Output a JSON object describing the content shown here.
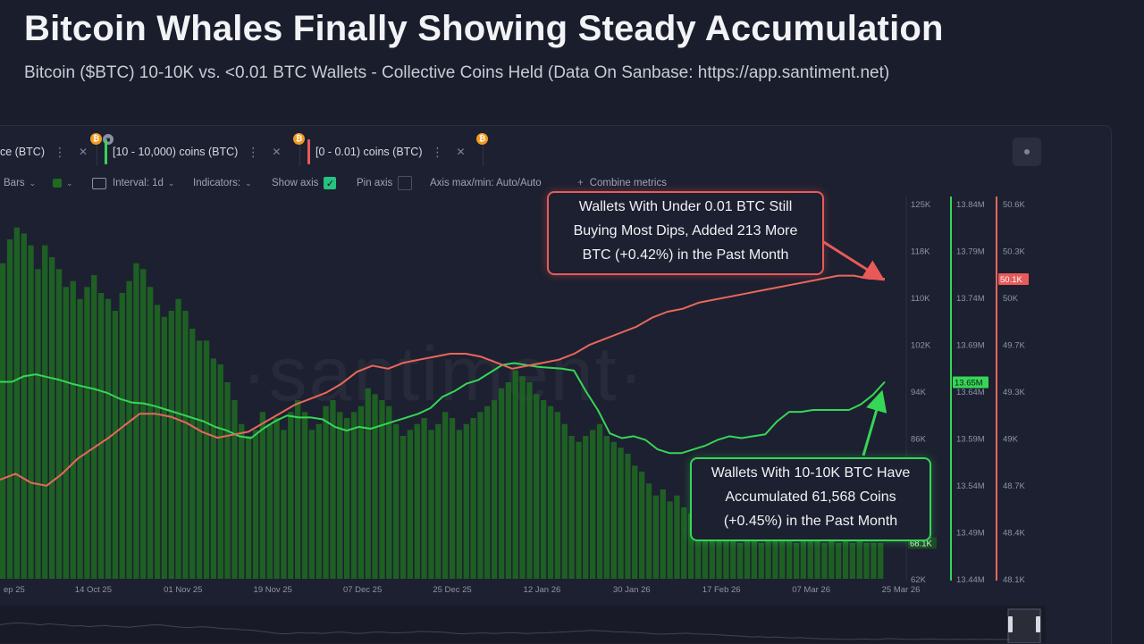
{
  "title": "Bitcoin Whales Finally Showing Steady Accumulation",
  "subtitle": "Bitcoin ($BTC) 10-10K vs. <0.01 BTC Wallets - Collective Coins Held (Data On Sanbase: https://app.santiment.net)",
  "tabs": [
    {
      "label": "ce (BTC)",
      "color": ""
    },
    {
      "label": "[10 - 10,000) coins (BTC)",
      "color": "#36d657"
    },
    {
      "label": "[0 - 0.01) coins (BTC)",
      "color": "#e85a5a"
    }
  ],
  "toolbar": {
    "bars": "Bars",
    "interval": "Interval: 1d",
    "indicators": "Indicators:",
    "show_axis": "Show axis",
    "pin_axis": "Pin axis",
    "axis_maxmin": "Axis max/min: Auto/Auto",
    "combine": "Combine metrics"
  },
  "watermark": "·santiment·",
  "colors": {
    "price_bars": "#1f6b22",
    "green_series": "#36d657",
    "red_series": "#e8685a",
    "background": "#1a1d2b"
  },
  "annotations": {
    "red": [
      "Wallets With Under 0.01 BTC Still",
      "Buying Most Dips, Added 213 More",
      "BTC (+0.42%) in the Past Month"
    ],
    "green": [
      "Wallets With 10-10K BTC Have",
      "Accumulated 61,568 Coins",
      "(+0.45%) in the Past Month"
    ]
  },
  "chart_data": {
    "type": "line",
    "title": "Bitcoin Whales Finally Showing Steady Accumulation",
    "x_ticks": [
      "ep 25",
      "14 Oct 25",
      "01 Nov 25",
      "19 Nov 25",
      "07 Dec 25",
      "25 Dec 25",
      "12 Jan 26",
      "30 Jan 26",
      "17 Feb 26",
      "07 Mar 26",
      "25 Mar 26"
    ],
    "axes": {
      "price": {
        "ticks": [
          "125K",
          "118K",
          "110K",
          "102K",
          "94K",
          "86K",
          "78K",
          "70K",
          "62K"
        ],
        "current_label": "68.1K",
        "current_value": 68100
      },
      "whales": {
        "ticks": [
          "13.84M",
          "13.79M",
          "13.74M",
          "13.69M",
          "13.64M",
          "13.59M",
          "13.54M",
          "13.49M",
          "13.44M"
        ],
        "current_label": "13.65M",
        "current_value": 13650000
      },
      "shrimp": {
        "ticks": [
          "50.6K",
          "50.3K",
          "50K",
          "49.7K",
          "49.3K",
          "49K",
          "48.7K",
          "48.4K",
          "48.1K"
        ],
        "current_label": "50.1K",
        "current_value": 50100
      }
    },
    "series": [
      {
        "name": "[10 - 10,000) coins (BTC)",
        "axis": "whales",
        "values": [
          13.65,
          13.65,
          13.656,
          13.658,
          13.655,
          13.652,
          13.648,
          13.645,
          13.642,
          13.638,
          13.632,
          13.628,
          13.627,
          13.624,
          13.62,
          13.616,
          13.612,
          13.608,
          13.602,
          13.598,
          13.592,
          13.59,
          13.6,
          13.608,
          13.614,
          13.612,
          13.612,
          13.61,
          13.602,
          13.598,
          13.602,
          13.6,
          13.604,
          13.608,
          13.612,
          13.616,
          13.622,
          13.634,
          13.64,
          13.648,
          13.652,
          13.66,
          13.668,
          13.67,
          13.668,
          13.666,
          13.665,
          13.664,
          13.662,
          13.64,
          13.62,
          13.595,
          13.59,
          13.592,
          13.588,
          13.578,
          13.574,
          13.574,
          13.578,
          13.582,
          13.588,
          13.592,
          13.59,
          13.592,
          13.594,
          13.608,
          13.618,
          13.618,
          13.62,
          13.62,
          13.62,
          13.62,
          13.626,
          13.636,
          13.65
        ]
      },
      {
        "name": "[0 - 0.01) coins (BTC)",
        "axis": "shrimp",
        "values": [
          48.76,
          48.8,
          48.74,
          48.72,
          48.8,
          48.9,
          48.97,
          49.04,
          49.12,
          49.2,
          49.2,
          49.18,
          49.14,
          49.08,
          49.04,
          49.06,
          49.08,
          49.14,
          49.2,
          49.26,
          49.3,
          49.34,
          49.4,
          49.48,
          49.52,
          49.5,
          49.54,
          49.56,
          49.58,
          49.6,
          49.6,
          49.58,
          49.54,
          49.5,
          49.52,
          49.54,
          49.56,
          49.6,
          49.66,
          49.7,
          49.74,
          49.78,
          49.84,
          49.88,
          49.9,
          49.94,
          49.96,
          49.98,
          50.0,
          50.02,
          50.04,
          50.06,
          50.08,
          50.1,
          50.12,
          50.12,
          50.1,
          50.1
        ]
      },
      {
        "name": "ce (BTC)",
        "axis": "price",
        "values": [
          115,
          119,
          121,
          120,
          118,
          114,
          118,
          116,
          114,
          111,
          112,
          109,
          111,
          113,
          110,
          109,
          107,
          110,
          112,
          115,
          114,
          111,
          108,
          106,
          107,
          109,
          107,
          104,
          102,
          102,
          99,
          98,
          95,
          92,
          88,
          86,
          87,
          90,
          88,
          89,
          87,
          90,
          92,
          90,
          87,
          88,
          91,
          92,
          90,
          89,
          90,
          91,
          94,
          93,
          92,
          91,
          88,
          86,
          87,
          88,
          89,
          87,
          88,
          90,
          89,
          87,
          88,
          89,
          90,
          91,
          92,
          94,
          95,
          97,
          96,
          95,
          93,
          92,
          91,
          90,
          88,
          86,
          85,
          86,
          87,
          88,
          86,
          85,
          84,
          83,
          81,
          80,
          78,
          76,
          77,
          75,
          76,
          74,
          73,
          74,
          72,
          71,
          70,
          70,
          69,
          68,
          69,
          70,
          68,
          69,
          71,
          70,
          69,
          68,
          69,
          70,
          69,
          68,
          69,
          68,
          69,
          68,
          69,
          68,
          68,
          68
        ]
      }
    ]
  }
}
